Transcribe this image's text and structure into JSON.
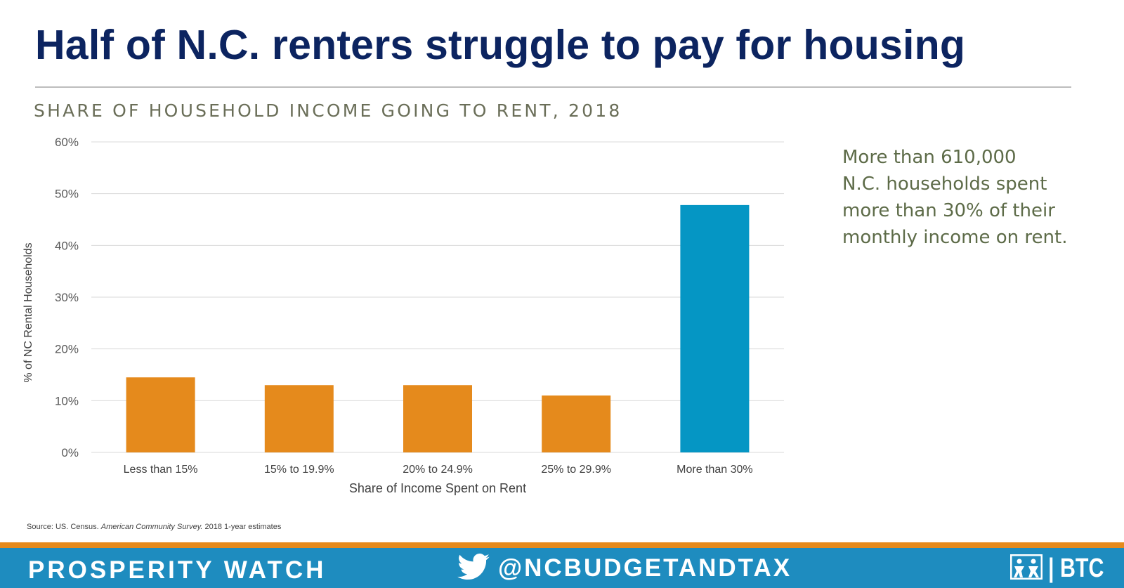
{
  "headline": "Half of N.C. renters struggle to pay for housing",
  "subtitle": "SHARE OF HOUSEHOLD INCOME GOING TO RENT, 2018",
  "callout": [
    "More than 610,000",
    "N.C. households spent",
    "more than 30% of their",
    "monthly income on rent."
  ],
  "source": {
    "prefix": "Source: US. Census. ",
    "italic": "American Community Survey.",
    "suffix": " 2018 1-year estimates"
  },
  "footer": {
    "left_text": "PROSPERITY WATCH",
    "handle": "@NCBUDGETANDTAX",
    "twitter_icon": "twitter-bird-icon",
    "brand_icon": "btc-figures-logo",
    "brand": "| BTC"
  },
  "colors": {
    "headline": "#0c2460",
    "orange": "#e58a1c",
    "highlight": "#0596c4",
    "footer_bg": "#1e8cbf",
    "callout": "#5d6b48"
  },
  "chart_data": {
    "type": "bar",
    "categories": [
      "Less than 15%",
      "15% to 19.9%",
      "20% to 24.9%",
      "25% to 29.9%",
      "More than 30%"
    ],
    "values": [
      14.5,
      13.0,
      13.0,
      11.0,
      47.8
    ],
    "bar_colors": [
      "#e58a1c",
      "#e58a1c",
      "#e58a1c",
      "#e58a1c",
      "#0596c4"
    ],
    "yticks": [
      "0%",
      "10%",
      "20%",
      "30%",
      "40%",
      "50%",
      "60%"
    ],
    "ylim": [
      0,
      60
    ],
    "xlabel": "Share of Income Spent on Rent",
    "ylabel": "% of NC Rental Households",
    "grid": true
  }
}
